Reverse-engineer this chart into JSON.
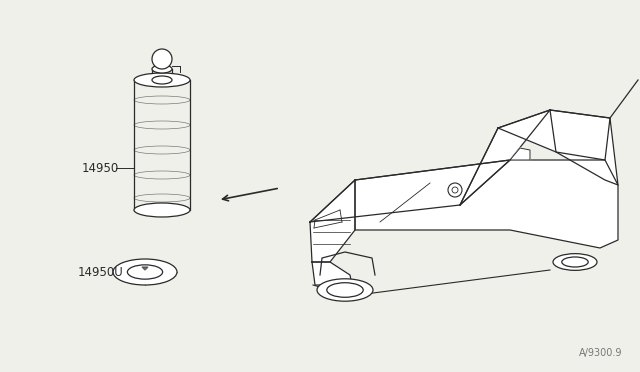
{
  "bg_color": "#f0f0eb",
  "line_color": "#2a2a2a",
  "label_color": "#2a2a2a",
  "lw": 0.9,
  "tlw": 0.7,
  "label_14950": "14950",
  "label_14950U": "14950U",
  "watermark": "A/9300.9",
  "fig_width": 6.4,
  "fig_height": 3.72,
  "dpi": 100
}
